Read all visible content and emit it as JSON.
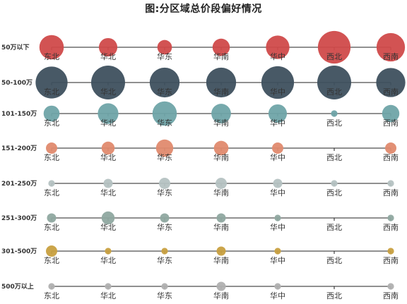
{
  "chart_data": {
    "type": "scatter",
    "title": "图:分区域总价段偏好情况",
    "regions": [
      "东北",
      "华北",
      "华东",
      "华南",
      "华中",
      "西北",
      "西南"
    ],
    "bands": [
      {
        "label": "50万以下",
        "color": "#d04a4a",
        "values": [
          14,
          8,
          5,
          7,
          13,
          25,
          19
        ]
      },
      {
        "label": "50-100万",
        "color": "#3e505e",
        "values": [
          24,
          27,
          21,
          21,
          25,
          27,
          20
        ]
      },
      {
        "label": "101-150万",
        "color": "#6fa4a8",
        "values": [
          6,
          10,
          14,
          9,
          8,
          1,
          7
        ]
      },
      {
        "label": "151-200万",
        "color": "#e08a6e",
        "values": [
          3,
          4,
          7,
          5,
          3,
          0,
          3
        ]
      },
      {
        "label": "201-250万",
        "color": "#b5c2c2",
        "values": [
          1,
          2,
          3,
          3,
          2,
          1,
          1
        ]
      },
      {
        "label": "251-300万",
        "color": "#8fa8a0",
        "values": [
          2,
          4,
          2,
          2,
          1,
          0,
          1
        ]
      },
      {
        "label": "301-500万",
        "color": "#c8a040",
        "values": [
          3,
          1,
          1,
          2,
          1,
          0,
          1
        ]
      },
      {
        "label": "500万以上",
        "color": "#b0b0b0",
        "values": [
          1,
          1,
          1,
          2,
          1,
          0,
          1
        ]
      }
    ],
    "legend": "none",
    "grid": false
  }
}
